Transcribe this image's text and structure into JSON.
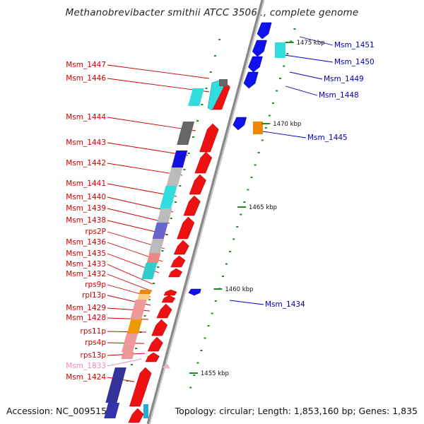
{
  "title": "Methanobrevibacter smithii ATCC 35061, complete genome",
  "footer": {
    "accession": "Accession: NC_009515",
    "summary": "Topology: circular; Length: 1,853,160 bp; Genes: 1,835"
  },
  "colors": {
    "forward_label": "#cc0000",
    "reverse_label": "#0000bb",
    "highlight_label": "#ee88bb",
    "tick": "#228822",
    "backbone": "#999999"
  },
  "ticks": [
    {
      "label": "1475 kbp"
    },
    {
      "label": "1470 kbp"
    },
    {
      "label": "1465 kbp"
    },
    {
      "label": "1460 kbp"
    },
    {
      "label": "1455 kbp"
    }
  ],
  "labels_left": [
    {
      "text": "Msm_1447",
      "color": "#cc0000"
    },
    {
      "text": "Msm_1446",
      "color": "#cc0000"
    },
    {
      "text": "Msm_1444",
      "color": "#cc0000"
    },
    {
      "text": "Msm_1443",
      "color": "#cc0000"
    },
    {
      "text": "Msm_1442",
      "color": "#cc0000"
    },
    {
      "text": "Msm_1441",
      "color": "#cc0000"
    },
    {
      "text": "Msm_1440",
      "color": "#cc0000"
    },
    {
      "text": "Msm_1439",
      "color": "#cc0000"
    },
    {
      "text": "Msm_1438",
      "color": "#cc0000"
    },
    {
      "text": "rps2P",
      "color": "#cc0000"
    },
    {
      "text": "Msm_1436",
      "color": "#cc0000"
    },
    {
      "text": "Msm_1435",
      "color": "#cc0000"
    },
    {
      "text": "Msm_1433",
      "color": "#cc0000"
    },
    {
      "text": "Msm_1432",
      "color": "#cc0000"
    },
    {
      "text": "rps9p",
      "color": "#cc0000"
    },
    {
      "text": "rpl13p",
      "color": "#cc0000"
    },
    {
      "text": "Msm_1429",
      "color": "#cc0000"
    },
    {
      "text": "Msm_1428",
      "color": "#cc0000"
    },
    {
      "text": "rps11p",
      "color": "#cc0000"
    },
    {
      "text": "rps4p",
      "color": "#cc0000"
    },
    {
      "text": "rps13p",
      "color": "#cc0000"
    },
    {
      "text": "Msm_1833",
      "color": "#ee88bb"
    },
    {
      "text": "Msm_1424",
      "color": "#cc0000"
    }
  ],
  "labels_right": [
    {
      "text": "Msm_1451",
      "color": "#0000bb"
    },
    {
      "text": "Msm_1450",
      "color": "#0000bb"
    },
    {
      "text": "Msm_1449",
      "color": "#0000bb"
    },
    {
      "text": "Msm_1448",
      "color": "#0000bb"
    },
    {
      "text": "Msm_1445",
      "color": "#0000bb"
    },
    {
      "text": "Msm_1434",
      "color": "#0000bb"
    }
  ]
}
